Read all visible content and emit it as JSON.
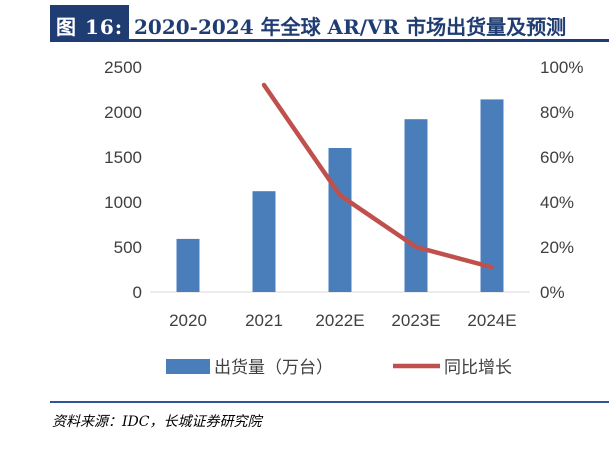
{
  "header": {
    "label": "图 16:",
    "title": "2020-2024 年全球 AR/VR 市场出货量及预测"
  },
  "source": "资料来源：IDC，长城证券研究院",
  "colors": {
    "bar": "#4a7ebb",
    "line": "#c0504d",
    "title_bg": "#1f3c73",
    "rule": "#2f5597"
  },
  "chart_data": {
    "type": "bar",
    "categories": [
      "2020",
      "2021",
      "2022E",
      "2023E",
      "2024E"
    ],
    "series": [
      {
        "name": "出货量（万台）",
        "type": "bar",
        "axis": "left",
        "values": [
          590,
          1120,
          1600,
          1920,
          2140
        ]
      },
      {
        "name": "同比增长",
        "type": "line",
        "axis": "right",
        "values": [
          null,
          0.92,
          0.43,
          0.2,
          0.11
        ]
      }
    ],
    "y_left": {
      "min": 0,
      "max": 2500,
      "ticks": [
        0,
        500,
        1000,
        1500,
        2000,
        2500
      ]
    },
    "y_right": {
      "min": 0,
      "max": 1.0,
      "ticks": [
        "0%",
        "20%",
        "40%",
        "60%",
        "80%",
        "100%"
      ]
    },
    "grid": false,
    "legend_position": "bottom"
  }
}
